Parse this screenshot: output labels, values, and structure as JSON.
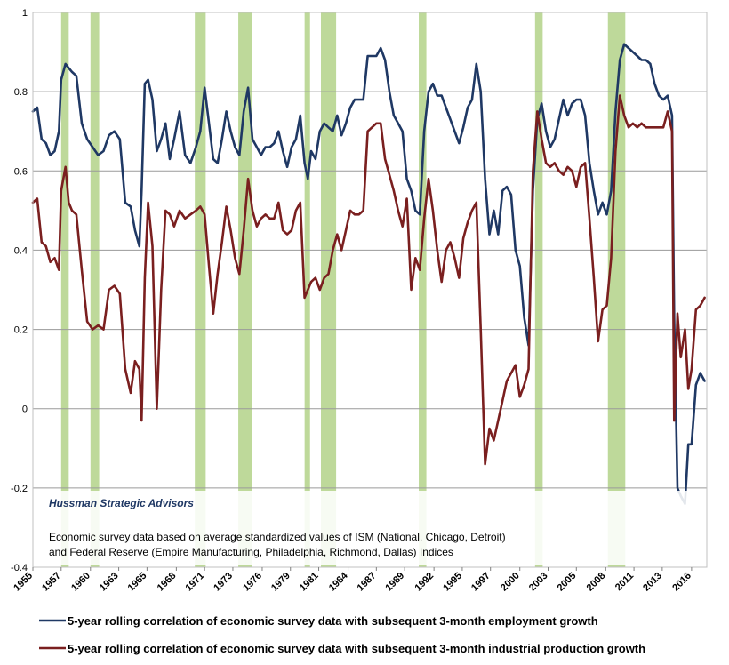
{
  "chart_data": {
    "type": "line",
    "title": "",
    "xlabel": "",
    "ylabel": "",
    "ylim": [
      -0.4,
      1
    ],
    "yticks": [
      "-0.4",
      "-0.2",
      "0",
      "0.2",
      "0.4",
      "0.6",
      "0.8",
      "1"
    ],
    "y_tick_values": [
      -0.4,
      -0.2,
      0,
      0.2,
      0.4,
      0.6,
      0.8,
      1
    ],
    "xlim": [
      1955,
      2017
    ],
    "xticks": [
      "1955",
      "1957",
      "1960",
      "1963",
      "1965",
      "1968",
      "1971",
      "1973",
      "1976",
      "1979",
      "1981",
      "1984",
      "1987",
      "1989",
      "1992",
      "1995",
      "1997",
      "2000",
      "2003",
      "2005",
      "2008",
      "2011",
      "2013",
      "2016"
    ],
    "x_tick_values": [
      1955,
      1957.6,
      1960.3,
      1962.9,
      1965.5,
      1968.2,
      1970.8,
      1973.4,
      1976.1,
      1978.7,
      1981.3,
      1984,
      1986.6,
      1989.2,
      1991.9,
      1994.5,
      1997.1,
      1999.8,
      2002.4,
      2005,
      2007.7,
      2010.3,
      2012.9,
      2015.6
    ],
    "grid": true,
    "legend_position": "bottom",
    "annotation_source": "Hussman Strategic Advisors",
    "annotation_lines": [
      "Economic  survey data based on average standardized values of ISM (National, Chicago, Detroit)",
      "and Federal Reserve (Empire Manufacturing, Philadelphia, Richmond, Dallas) Indices"
    ],
    "recession_shading": [
      [
        1957.6,
        1958.3
      ],
      [
        1960.3,
        1961.1
      ],
      [
        1969.9,
        1970.9
      ],
      [
        1973.9,
        1975.2
      ],
      [
        1980.0,
        1980.5
      ],
      [
        1981.5,
        1982.9
      ],
      [
        1990.5,
        1991.2
      ],
      [
        2001.2,
        2001.9
      ],
      [
        2007.9,
        2009.5
      ]
    ],
    "series": [
      {
        "name": "5-year rolling correlation of economic survey data with subsequent 3-month employment growth",
        "color": "#1f3864",
        "x": [
          1955,
          1955.4,
          1955.8,
          1956.2,
          1956.6,
          1957.0,
          1957.4,
          1957.6,
          1958.0,
          1958.3,
          1958.6,
          1959.0,
          1959.5,
          1960.0,
          1960.5,
          1961.0,
          1961.5,
          1962.0,
          1962.5,
          1963.0,
          1963.5,
          1964.0,
          1964.4,
          1964.8,
          1965.0,
          1965.3,
          1965.6,
          1966.0,
          1966.4,
          1966.8,
          1967.2,
          1967.6,
          1968.0,
          1968.5,
          1969.0,
          1969.5,
          1970.0,
          1970.4,
          1970.8,
          1971.2,
          1971.6,
          1972.0,
          1972.4,
          1972.8,
          1973.2,
          1973.6,
          1974.0,
          1974.4,
          1974.8,
          1975.2,
          1975.6,
          1976.0,
          1976.4,
          1976.8,
          1977.2,
          1977.6,
          1978.0,
          1978.4,
          1978.8,
          1979.2,
          1979.6,
          1980.0,
          1980.3,
          1980.6,
          1981.0,
          1981.4,
          1981.8,
          1982.2,
          1982.6,
          1983.0,
          1983.4,
          1983.8,
          1984.2,
          1984.6,
          1985.0,
          1985.4,
          1985.8,
          1986.2,
          1986.6,
          1987.0,
          1987.4,
          1987.8,
          1988.2,
          1988.6,
          1989.0,
          1989.4,
          1989.8,
          1990.2,
          1990.6,
          1991.0,
          1991.4,
          1991.8,
          1992.2,
          1992.6,
          1993.0,
          1993.4,
          1993.8,
          1994.2,
          1994.6,
          1995.0,
          1995.4,
          1995.8,
          1996.2,
          1996.6,
          1997.0,
          1997.4,
          1997.8,
          1998.2,
          1998.6,
          1999.0,
          1999.4,
          1999.8,
          2000.2,
          2000.6,
          2001.0,
          2001.4,
          2001.8,
          2002.2,
          2002.6,
          2003.0,
          2003.4,
          2003.8,
          2004.2,
          2004.6,
          2005.0,
          2005.4,
          2005.8,
          2006.2,
          2006.6,
          2007.0,
          2007.4,
          2007.8,
          2008.2,
          2008.6,
          2009.0,
          2009.4,
          2009.8,
          2010.2,
          2010.6,
          2011.0,
          2011.4,
          2011.8,
          2012.2,
          2012.6,
          2013.0,
          2013.4,
          2013.8,
          2014.0,
          2014.3,
          2014.6,
          2015.0,
          2015.3,
          2015.6,
          2016.0,
          2016.4,
          2016.8
        ],
        "values": [
          0.75,
          0.76,
          0.68,
          0.67,
          0.64,
          0.65,
          0.7,
          0.83,
          0.87,
          0.86,
          0.85,
          0.84,
          0.72,
          0.68,
          0.66,
          0.64,
          0.65,
          0.69,
          0.7,
          0.68,
          0.52,
          0.51,
          0.45,
          0.41,
          0.55,
          0.82,
          0.83,
          0.78,
          0.65,
          0.68,
          0.72,
          0.63,
          0.68,
          0.75,
          0.64,
          0.62,
          0.66,
          0.7,
          0.81,
          0.72,
          0.63,
          0.62,
          0.68,
          0.75,
          0.7,
          0.66,
          0.64,
          0.75,
          0.81,
          0.68,
          0.66,
          0.64,
          0.66,
          0.66,
          0.67,
          0.7,
          0.65,
          0.61,
          0.66,
          0.68,
          0.74,
          0.62,
          0.58,
          0.65,
          0.63,
          0.7,
          0.72,
          0.71,
          0.7,
          0.74,
          0.69,
          0.72,
          0.76,
          0.78,
          0.78,
          0.78,
          0.89,
          0.89,
          0.89,
          0.91,
          0.88,
          0.8,
          0.74,
          0.72,
          0.7,
          0.58,
          0.55,
          0.5,
          0.49,
          0.7,
          0.8,
          0.82,
          0.79,
          0.79,
          0.76,
          0.73,
          0.7,
          0.67,
          0.71,
          0.76,
          0.78,
          0.87,
          0.8,
          0.58,
          0.44,
          0.5,
          0.44,
          0.55,
          0.56,
          0.54,
          0.4,
          0.36,
          0.23,
          0.16,
          0.55,
          0.73,
          0.77,
          0.7,
          0.66,
          0.68,
          0.73,
          0.78,
          0.74,
          0.77,
          0.78,
          0.78,
          0.74,
          0.62,
          0.55,
          0.49,
          0.52,
          0.49,
          0.55,
          0.75,
          0.88,
          0.92,
          0.91,
          0.9,
          0.89,
          0.88,
          0.88,
          0.87,
          0.82,
          0.79,
          0.78,
          0.79,
          0.74,
          0.23,
          -0.2,
          -0.22,
          -0.24,
          -0.09,
          -0.09,
          0.06,
          0.09,
          0.07
        ]
      },
      {
        "name": "5-year rolling correlation of economic survey data with subsequent 3-month industrial production growth",
        "color": "#7a1f1f",
        "x": [
          1955,
          1955.4,
          1955.8,
          1956.2,
          1956.6,
          1957.0,
          1957.4,
          1957.6,
          1958.0,
          1958.3,
          1958.6,
          1959.0,
          1959.5,
          1960.0,
          1960.5,
          1961.0,
          1961.5,
          1962.0,
          1962.5,
          1963.0,
          1963.5,
          1964.0,
          1964.4,
          1964.8,
          1965.0,
          1965.3,
          1965.6,
          1966.0,
          1966.4,
          1966.8,
          1967.2,
          1967.6,
          1968.0,
          1968.5,
          1969.0,
          1969.5,
          1970.0,
          1970.4,
          1970.8,
          1971.2,
          1971.6,
          1972.0,
          1972.4,
          1972.8,
          1973.2,
          1973.6,
          1974.0,
          1974.4,
          1974.8,
          1975.2,
          1975.6,
          1976.0,
          1976.4,
          1976.8,
          1977.2,
          1977.6,
          1978.0,
          1978.4,
          1978.8,
          1979.2,
          1979.6,
          1980.0,
          1980.3,
          1980.6,
          1981.0,
          1981.4,
          1981.8,
          1982.2,
          1982.6,
          1983.0,
          1983.4,
          1983.8,
          1984.2,
          1984.6,
          1985.0,
          1985.4,
          1985.8,
          1986.2,
          1986.6,
          1987.0,
          1987.4,
          1987.8,
          1988.2,
          1988.6,
          1989.0,
          1989.4,
          1989.8,
          1990.2,
          1990.6,
          1991.0,
          1991.4,
          1991.8,
          1992.2,
          1992.6,
          1993.0,
          1993.4,
          1993.8,
          1994.2,
          1994.6,
          1995.0,
          1995.4,
          1995.8,
          1996.2,
          1996.6,
          1997.0,
          1997.4,
          1997.8,
          1998.2,
          1998.6,
          1999.0,
          1999.4,
          1999.8,
          2000.2,
          2000.6,
          2001.0,
          2001.4,
          2001.8,
          2002.2,
          2002.6,
          2003.0,
          2003.4,
          2003.8,
          2004.2,
          2004.6,
          2005.0,
          2005.4,
          2005.8,
          2006.2,
          2006.6,
          2007.0,
          2007.4,
          2007.8,
          2008.2,
          2008.6,
          2009.0,
          2009.4,
          2009.8,
          2010.2,
          2010.6,
          2011.0,
          2011.4,
          2011.8,
          2012.2,
          2012.6,
          2013.0,
          2013.4,
          2013.8,
          2014.0,
          2014.3,
          2014.6,
          2015.0,
          2015.3,
          2015.6,
          2016.0,
          2016.4,
          2016.8
        ],
        "values": [
          0.52,
          0.53,
          0.42,
          0.41,
          0.37,
          0.38,
          0.35,
          0.55,
          0.61,
          0.52,
          0.5,
          0.49,
          0.35,
          0.22,
          0.2,
          0.21,
          0.2,
          0.3,
          0.31,
          0.29,
          0.1,
          0.04,
          0.12,
          0.1,
          -0.03,
          0.33,
          0.52,
          0.41,
          0.0,
          0.3,
          0.5,
          0.49,
          0.46,
          0.5,
          0.48,
          0.49,
          0.5,
          0.51,
          0.49,
          0.36,
          0.24,
          0.34,
          0.42,
          0.51,
          0.45,
          0.38,
          0.34,
          0.45,
          0.58,
          0.5,
          0.46,
          0.48,
          0.49,
          0.48,
          0.48,
          0.52,
          0.45,
          0.44,
          0.45,
          0.5,
          0.52,
          0.28,
          0.3,
          0.32,
          0.33,
          0.3,
          0.33,
          0.34,
          0.4,
          0.44,
          0.4,
          0.45,
          0.5,
          0.49,
          0.49,
          0.5,
          0.7,
          0.71,
          0.72,
          0.72,
          0.63,
          0.59,
          0.55,
          0.5,
          0.46,
          0.53,
          0.3,
          0.38,
          0.35,
          0.48,
          0.58,
          0.5,
          0.4,
          0.32,
          0.4,
          0.42,
          0.38,
          0.33,
          0.43,
          0.47,
          0.5,
          0.52,
          0.2,
          -0.14,
          -0.05,
          -0.08,
          -0.03,
          0.02,
          0.07,
          0.09,
          0.11,
          0.03,
          0.06,
          0.1,
          0.6,
          0.75,
          0.68,
          0.62,
          0.61,
          0.62,
          0.6,
          0.59,
          0.61,
          0.6,
          0.56,
          0.61,
          0.62,
          0.48,
          0.33,
          0.17,
          0.25,
          0.26,
          0.38,
          0.65,
          0.79,
          0.74,
          0.71,
          0.72,
          0.71,
          0.72,
          0.71,
          0.71,
          0.71,
          0.71,
          0.71,
          0.75,
          0.7,
          -0.03,
          0.24,
          0.13,
          0.2,
          0.05,
          0.1,
          0.25,
          0.26,
          0.28
        ]
      }
    ]
  }
}
